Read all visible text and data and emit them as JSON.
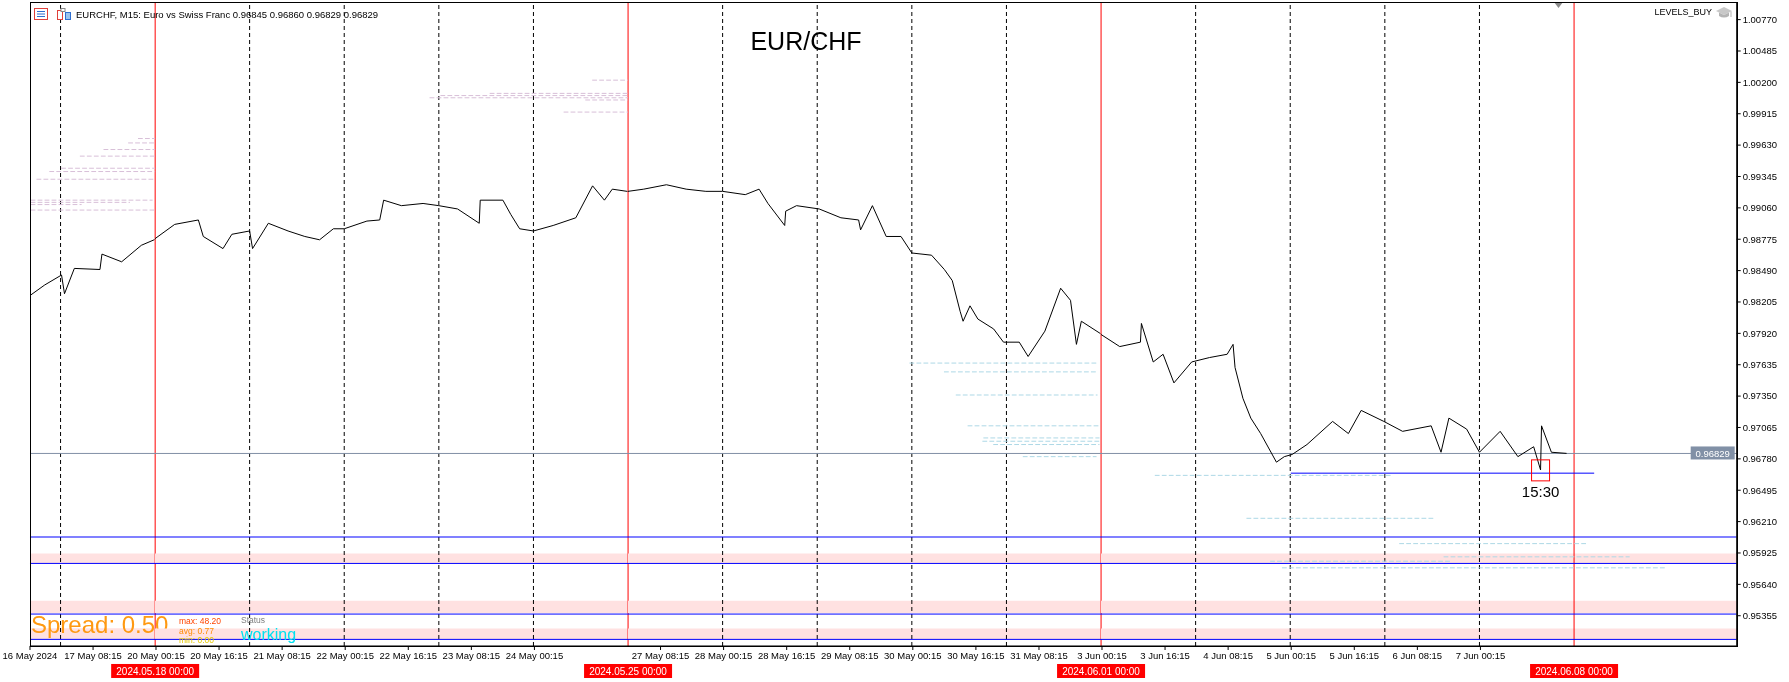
{
  "chart_data": [
    {
      "type": "line",
      "subtitle": "EURCHF, M15: Euro vs Swiss Franc 0.96845 0.96860 0.96829 0.96829",
      "line_style": "solid",
      "marker": "none",
      "tick_labels": "x",
      "xlim": [
        "2024-05-16T16:15",
        "2024-05-18T00:00"
      ],
      "xticks": [
        {
          "value": "2024-05-16T16:15",
          "label": "16 May 2024"
        },
        {
          "value": "2024-05-17T08:15",
          "label": "17 May 08:15"
        }
      ],
      "ylim": [
        0.9508,
        1.0093
      ],
      "series": [
        {
          "color": "#000000",
          "x": [
            "2024-05-16T16:30",
            "2024-05-16T20:00",
            "2024-05-17T00:15",
            "2024-05-17T01:00",
            "2024-05-17T03:30",
            "2024-05-17T10:00",
            "2024-05-17T10:30",
            "2024-05-17T15:30",
            "2024-05-17T20:30",
            "2024-05-17T23:45"
          ],
          "values": [
            0.9827,
            0.9836,
            0.9845,
            0.9828,
            0.9851,
            0.985,
            0.9864,
            0.9857,
            0.9872,
            0.9877
          ]
        },
        {
          "color": "#d8bfd8",
          "line_style": "dashed",
          "x": [
            "2024-05-17T19:45",
            "2024-05-18T00:00"
          ],
          "values": [
            0.9969,
            0.9969
          ]
        },
        {
          "color": "#d8bfd8",
          "line_style": "dashed",
          "x": [
            "2024-05-17T17:15",
            "2024-05-18T00:00"
          ],
          "values": [
            0.9965,
            0.9965
          ]
        },
        {
          "color": "#d8bfd8",
          "line_style": "dashed",
          "x": [
            "2024-05-17T11:00",
            "2024-05-18T00:00"
          ],
          "values": [
            0.9959,
            0.9959
          ]
        },
        {
          "color": "#d8bfd8",
          "line_style": "dashed",
          "x": [
            "2024-05-17T05:00",
            "2024-05-18T00:00"
          ],
          "values": [
            0.9953,
            0.9953
          ]
        },
        {
          "color": "#d8bfd8",
          "line_style": "dashed",
          "x": [
            "2024-05-17T00:15",
            "2024-05-18T00:00"
          ],
          "values": [
            0.9942,
            0.9942
          ]
        },
        {
          "color": "#d8bfd8",
          "line_style": "dashed",
          "x": [
            "2024-05-16T21:15",
            "2024-05-18T00:00"
          ],
          "values": [
            0.9939,
            0.9939
          ]
        },
        {
          "color": "#d8bfd8",
          "line_style": "dashed",
          "x": [
            "2024-05-16T18:00",
            "2024-05-18T00:00"
          ],
          "values": [
            0.9932,
            0.9932
          ]
        },
        {
          "color": "#d8bfd8",
          "line_style": "dashed",
          "x": [
            "2024-05-16T16:30",
            "2024-05-17T23:15"
          ],
          "values": [
            0.9913,
            0.9913
          ]
        },
        {
          "color": "#d8bfd8",
          "line_style": "dashed",
          "x": [
            "2024-05-16T16:30",
            "2024-05-17T17:30"
          ],
          "values": [
            0.9911,
            0.9911
          ]
        },
        {
          "color": "#d8bfd8",
          "line_style": "dashed",
          "x": [
            "2024-05-16T16:30",
            "2024-05-17T05:15"
          ],
          "values": [
            0.9909,
            0.9909
          ]
        },
        {
          "color": "#d8bfd8",
          "line_style": "dashed",
          "x": [
            "2024-05-16T16:30",
            "2024-05-18T00:00"
          ],
          "values": [
            0.9904,
            0.9904
          ]
        }
      ],
      "ref_lines": [
        {
          "axis": "x",
          "value": "2024-05-17T00:00",
          "color": "#000000",
          "line_style": "dashed"
        },
        {
          "axis": "x",
          "value": "2024-05-18T00:00",
          "label": "2024.05.18 00:00",
          "color": "#ff0000"
        },
        {
          "axis": "y",
          "value": 0.9607,
          "color": "#0000ff"
        },
        {
          "axis": "y",
          "value": 0.9583,
          "color": "#0000ff"
        },
        {
          "axis": "y",
          "value": 0.9537,
          "color": "#0000ff"
        },
        {
          "axis": "y",
          "value": 0.9514,
          "color": "#0000ff"
        },
        {
          "axis": "y",
          "value": 0.96829,
          "color": "#8190a6"
        }
      ],
      "bands": [
        {
          "axis": "y",
          "from": 0.9583,
          "to": 0.9592,
          "color": "#ffe1e1"
        },
        {
          "axis": "y",
          "from": 0.9538,
          "to": 0.9549,
          "color": "#ffe1e1"
        },
        {
          "axis": "y",
          "from": 0.9514,
          "to": 0.9524,
          "color": "#ffe1e1"
        }
      ],
      "annotations": [
        "Spread: 0.50"
      ]
    },
    {
      "type": "line",
      "line_style": "solid",
      "marker": "none",
      "tick_labels": "x",
      "xlim": [
        "2024-05-20T00:00",
        "2024-05-25T00:00"
      ],
      "xticks": [
        {
          "value": "2024-05-20T00:15",
          "label": "20 May 00:15"
        },
        {
          "value": "2024-05-20T16:15",
          "label": "20 May 16:15"
        },
        {
          "value": "2024-05-21T08:15",
          "label": "21 May 08:15"
        },
        {
          "value": "2024-05-22T00:15",
          "label": "22 May 00:15"
        },
        {
          "value": "2024-05-22T16:15",
          "label": "22 May 16:15"
        },
        {
          "value": "2024-05-23T08:15",
          "label": "23 May 08:15"
        },
        {
          "value": "2024-05-24T00:15",
          "label": "24 May 00:15"
        }
      ],
      "ylim": [
        0.9508,
        1.0093
      ],
      "series": [
        {
          "color": "#000000",
          "x": [
            "2024-05-20T00:00",
            "2024-05-20T05:00",
            "2024-05-20T11:00",
            "2024-05-20T12:15",
            "2024-05-20T17:15",
            "2024-05-20T19:30",
            "2024-05-21T00:00",
            "2024-05-21T00:45",
            "2024-05-21T04:45",
            "2024-05-21T09:45",
            "2024-05-21T14:00",
            "2024-05-21T17:45",
            "2024-05-21T21:15",
            "2024-05-22T00:00",
            "2024-05-22T05:45",
            "2024-05-22T09:00",
            "2024-05-22T10:00",
            "2024-05-22T14:30",
            "2024-05-22T20:00",
            "2024-05-23T00:00",
            "2024-05-23T04:45",
            "2024-05-23T10:15",
            "2024-05-23T10:30",
            "2024-05-23T16:15",
            "2024-05-23T18:15",
            "2024-05-23T20:30",
            "2024-05-24T00:00",
            "2024-05-24T05:00",
            "2024-05-24T10:45",
            "2024-05-24T15:00",
            "2024-05-24T18:00",
            "2024-05-24T20:00",
            "2024-05-24T23:45"
          ],
          "values": [
            0.9878,
            0.9891,
            0.9895,
            0.988,
            0.9869,
            0.9882,
            0.9885,
            0.9869,
            0.9892,
            0.9885,
            0.988,
            0.9877,
            0.9887,
            0.9887,
            0.9894,
            0.9895,
            0.9913,
            0.9908,
            0.991,
            0.9908,
            0.9905,
            0.9892,
            0.9913,
            0.9913,
            0.99,
            0.9887,
            0.9885,
            0.989,
            0.9897,
            0.9926,
            0.9913,
            0.9923,
            0.9921
          ]
        },
        {
          "color": "#d8bfd8",
          "line_style": "dashed",
          "x": [
            "2024-05-24T15:00",
            "2024-05-25T00:00"
          ],
          "values": [
            1.0022,
            1.0022
          ]
        },
        {
          "color": "#d8bfd8",
          "line_style": "dashed",
          "x": [
            "2024-05-23T13:00",
            "2024-05-25T00:00"
          ],
          "values": [
            1.001,
            1.001
          ]
        },
        {
          "color": "#d8bfd8",
          "line_style": "dashed",
          "x": [
            "2024-05-23T00:30",
            "2024-05-25T00:00"
          ],
          "values": [
            1.0008,
            1.0008
          ]
        },
        {
          "color": "#d8bfd8",
          "line_style": "dashed",
          "x": [
            "2024-05-22T21:45",
            "2024-05-25T00:00"
          ],
          "values": [
            1.0006,
            1.0006
          ]
        },
        {
          "color": "#d8bfd8",
          "line_style": "dashed",
          "x": [
            "2024-05-24T13:15",
            "2024-05-25T00:00"
          ],
          "values": [
            1.0004,
            1.0004
          ]
        },
        {
          "color": "#d8bfd8",
          "line_style": "dashed",
          "x": [
            "2024-05-24T07:45",
            "2024-05-25T00:00"
          ],
          "values": [
            0.9993,
            0.9993
          ]
        }
      ],
      "ref_lines": [
        {
          "axis": "x",
          "value": "2024-05-21T00:00",
          "color": "#000000",
          "line_style": "dashed"
        },
        {
          "axis": "x",
          "value": "2024-05-22T00:00",
          "color": "#000000",
          "line_style": "dashed"
        },
        {
          "axis": "x",
          "value": "2024-05-23T00:00",
          "color": "#000000",
          "line_style": "dashed"
        },
        {
          "axis": "x",
          "value": "2024-05-24T00:00",
          "color": "#000000",
          "line_style": "dashed"
        },
        {
          "axis": "x",
          "value": "2024-05-25T00:00",
          "label": "2024.05.25 00:00",
          "color": "#ff0000"
        },
        {
          "axis": "y",
          "value": 0.9607,
          "color": "#0000ff"
        },
        {
          "axis": "y",
          "value": 0.9583,
          "color": "#0000ff"
        },
        {
          "axis": "y",
          "value": 0.9537,
          "color": "#0000ff"
        },
        {
          "axis": "y",
          "value": 0.9514,
          "color": "#0000ff"
        },
        {
          "axis": "y",
          "value": 0.96829,
          "color": "#8190a6"
        }
      ],
      "bands": [
        {
          "axis": "y",
          "from": 0.9583,
          "to": 0.9592,
          "color": "#ffe1e1"
        },
        {
          "axis": "y",
          "from": 0.9538,
          "to": 0.9549,
          "color": "#ffe1e1"
        },
        {
          "axis": "y",
          "from": 0.9514,
          "to": 0.9524,
          "color": "#ffe1e1"
        }
      ],
      "annotations": [
        "max: 48.20",
        "avg: 0.77",
        "min: 0.00",
        "Status",
        "working"
      ]
    },
    {
      "type": "line",
      "title": "EUR/CHF",
      "line_style": "solid",
      "marker": "none",
      "tick_labels": "x",
      "xlim": [
        "2024-05-27T00:00",
        "2024-06-01T00:00"
      ],
      "xticks": [
        {
          "value": "2024-05-27T08:15",
          "label": "27 May 08:15"
        },
        {
          "value": "2024-05-28T00:15",
          "label": "28 May 00:15"
        },
        {
          "value": "2024-05-28T16:15",
          "label": "28 May 16:15"
        },
        {
          "value": "2024-05-29T08:15",
          "label": "29 May 08:15"
        },
        {
          "value": "2024-05-30T00:15",
          "label": "30 May 00:15"
        },
        {
          "value": "2024-05-30T16:15",
          "label": "30 May 16:15"
        },
        {
          "value": "2024-05-31T08:15",
          "label": "31 May 08:15"
        }
      ],
      "ylim": [
        0.9508,
        1.0093
      ],
      "series": [
        {
          "color": "#000000",
          "x": [
            "2024-05-27T00:00",
            "2024-05-27T04:00",
            "2024-05-27T09:45",
            "2024-05-27T14:45",
            "2024-05-27T19:45",
            "2024-05-28T00:00",
            "2024-05-28T05:45",
            "2024-05-28T09:15",
            "2024-05-28T11:30",
            "2024-05-28T15:45",
            "2024-05-28T16:00",
            "2024-05-28T18:45",
            "2024-05-29T00:30",
            "2024-05-29T06:00",
            "2024-05-29T10:30",
            "2024-05-29T11:00",
            "2024-05-29T14:00",
            "2024-05-29T17:30",
            "2024-05-29T21:15",
            "2024-05-30T00:00",
            "2024-05-30T05:00",
            "2024-05-30T08:15",
            "2024-05-30T10:15",
            "2024-05-30T12:15",
            "2024-05-30T13:00",
            "2024-05-30T14:45",
            "2024-05-30T16:45",
            "2024-05-30T20:45",
            "2024-05-30T23:15",
            "2024-05-31T03:15",
            "2024-05-31T05:30",
            "2024-05-31T09:45",
            "2024-05-31T13:45",
            "2024-05-31T16:15",
            "2024-05-31T17:45",
            "2024-05-31T19:00",
            "2024-05-31T23:45"
          ],
          "values": [
            0.9921,
            0.9923,
            0.9927,
            0.9923,
            0.9921,
            0.9921,
            0.9918,
            0.9923,
            0.991,
            0.989,
            0.9903,
            0.9908,
            0.9905,
            0.9897,
            0.9895,
            0.9886,
            0.9908,
            0.988,
            0.988,
            0.9865,
            0.9863,
            0.985,
            0.984,
            0.9812,
            0.9803,
            0.9817,
            0.9805,
            0.9796,
            0.9784,
            0.9784,
            0.9771,
            0.9794,
            0.9833,
            0.9822,
            0.9782,
            0.9803,
            0.9792
          ]
        },
        {
          "color": "#add8e6",
          "line_style": "dashed",
          "x": [
            "2024-05-29T23:30",
            "2024-05-31T23:00"
          ],
          "values": [
            0.9765,
            0.9765
          ]
        },
        {
          "color": "#add8e6",
          "line_style": "dashed",
          "x": [
            "2024-05-30T08:15",
            "2024-05-31T23:00"
          ],
          "values": [
            0.9757,
            0.9757
          ]
        },
        {
          "color": "#add8e6",
          "line_style": "dashed",
          "x": [
            "2024-05-30T11:15",
            "2024-05-31T23:00"
          ],
          "values": [
            0.9736,
            0.9736
          ]
        },
        {
          "color": "#add8e6",
          "line_style": "dashed",
          "x": [
            "2024-05-30T14:15",
            "2024-05-31T23:30"
          ],
          "values": [
            0.9708,
            0.9708
          ]
        },
        {
          "color": "#add8e6",
          "line_style": "dashed",
          "x": [
            "2024-05-30T18:15",
            "2024-05-31T23:30"
          ],
          "values": [
            0.9697,
            0.9697
          ]
        },
        {
          "color": "#add8e6",
          "line_style": "dashed",
          "x": [
            "2024-05-30T18:00",
            "2024-05-31T23:30"
          ],
          "values": [
            0.9694,
            0.9694
          ]
        },
        {
          "color": "#add8e6",
          "line_style": "dashed",
          "x": [
            "2024-05-30T20:45",
            "2024-05-31T23:30"
          ],
          "values": [
            0.9691,
            0.9691
          ]
        },
        {
          "color": "#add8e6",
          "line_style": "dashed",
          "x": [
            "2024-05-31T04:15",
            "2024-05-31T22:45"
          ],
          "values": [
            0.968,
            0.968
          ]
        }
      ],
      "ref_lines": [
        {
          "axis": "x",
          "value": "2024-05-28T00:00",
          "color": "#000000",
          "line_style": "dashed"
        },
        {
          "axis": "x",
          "value": "2024-05-29T00:00",
          "color": "#000000",
          "line_style": "dashed"
        },
        {
          "axis": "x",
          "value": "2024-05-30T00:00",
          "color": "#000000",
          "line_style": "dashed"
        },
        {
          "axis": "x",
          "value": "2024-05-31T00:00",
          "color": "#000000",
          "line_style": "dashed"
        },
        {
          "axis": "x",
          "value": "2024-06-01T00:00",
          "label": "2024.06.01 00:00",
          "color": "#ff0000"
        },
        {
          "axis": "y",
          "value": 0.9607,
          "color": "#0000ff"
        },
        {
          "axis": "y",
          "value": 0.9583,
          "color": "#0000ff"
        },
        {
          "axis": "y",
          "value": 0.9537,
          "color": "#0000ff"
        },
        {
          "axis": "y",
          "value": 0.9514,
          "color": "#0000ff"
        },
        {
          "axis": "y",
          "value": 0.96829,
          "color": "#8190a6"
        }
      ],
      "bands": [
        {
          "axis": "y",
          "from": 0.9583,
          "to": 0.9592,
          "color": "#ffe1e1"
        },
        {
          "axis": "y",
          "from": 0.9538,
          "to": 0.9549,
          "color": "#ffe1e1"
        },
        {
          "axis": "y",
          "from": 0.9514,
          "to": 0.9524,
          "color": "#ffe1e1"
        }
      ]
    },
    {
      "type": "line",
      "line_style": "solid",
      "marker": "none",
      "xlim": [
        "2024-06-03T00:00",
        "2024-06-09T17:15"
      ],
      "xticks": [
        {
          "value": "2024-06-03T00:15",
          "label": "3 Jun 00:15"
        },
        {
          "value": "2024-06-03T16:15",
          "label": "3 Jun 16:15"
        },
        {
          "value": "2024-06-04T08:15",
          "label": "4 Jun 08:15"
        },
        {
          "value": "2024-06-05T00:15",
          "label": "5 Jun 00:15"
        },
        {
          "value": "2024-06-05T16:15",
          "label": "5 Jun 16:15"
        },
        {
          "value": "2024-06-06T08:15",
          "label": "6 Jun 08:15"
        },
        {
          "value": "2024-06-07T00:15",
          "label": "7 Jun 00:15"
        }
      ],
      "ylim": [
        0.9508,
        1.0093
      ],
      "yticks": [
        {
          "value": 0.95355,
          "label": "0.95355"
        },
        {
          "value": 0.9564,
          "label": "0.95640"
        },
        {
          "value": 0.95925,
          "label": "0.95925"
        },
        {
          "value": 0.9621,
          "label": "0.96210"
        },
        {
          "value": 0.96495,
          "label": "0.96495"
        },
        {
          "value": 0.9678,
          "label": "0.96780"
        },
        {
          "value": 0.97065,
          "label": "0.97065"
        },
        {
          "value": 0.9735,
          "label": "0.97350"
        },
        {
          "value": 0.97635,
          "label": "0.97635"
        },
        {
          "value": 0.9792,
          "label": "0.97920"
        },
        {
          "value": 0.98205,
          "label": "0.98205"
        },
        {
          "value": 0.9849,
          "label": "0.98490"
        },
        {
          "value": 0.98775,
          "label": "0.98775"
        },
        {
          "value": 0.9906,
          "label": "0.99060"
        },
        {
          "value": 0.99345,
          "label": "0.99345"
        },
        {
          "value": 0.9963,
          "label": "0.99630"
        },
        {
          "value": 0.99915,
          "label": "0.99915"
        },
        {
          "value": 1.002,
          "label": "1.00200"
        },
        {
          "value": 1.00485,
          "label": "1.00485"
        },
        {
          "value": 1.0077,
          "label": "1.00770"
        }
      ],
      "series": [
        {
          "color": "#000000",
          "x": [
            "2024-06-03T00:00",
            "2024-06-03T04:45",
            "2024-06-03T10:00",
            "2024-06-03T10:15",
            "2024-06-03T13:15",
            "2024-06-03T15:45",
            "2024-06-03T18:30",
            "2024-06-03T23:00",
            "2024-06-04T03:30",
            "2024-06-04T08:00",
            "2024-06-04T09:30",
            "2024-06-04T10:00",
            "2024-06-04T12:00",
            "2024-06-04T14:00",
            "2024-06-04T16:30",
            "2024-06-04T20:30",
            "2024-06-04T22:30",
            "2024-06-05T00:30",
            "2024-06-05T04:15",
            "2024-06-05T10:45",
            "2024-06-05T14:45",
            "2024-06-05T18:00",
            "2024-06-05T23:45",
            "2024-06-06T04:30",
            "2024-06-06T11:45",
            "2024-06-06T14:15",
            "2024-06-06T16:15",
            "2024-06-06T20:45",
            "2024-06-07T00:00",
            "2024-06-07T05:15",
            "2024-06-07T09:45",
            "2024-06-07T13:45",
            "2024-06-07T15:30",
            "2024-06-07T15:45",
            "2024-06-07T18:15",
            "2024-06-07T22:00"
          ],
          "values": [
            0.9791,
            0.978,
            0.9784,
            0.9801,
            0.9766,
            0.9773,
            0.9747,
            0.9766,
            0.977,
            0.9773,
            0.9782,
            0.9761,
            0.9733,
            0.9715,
            0.9701,
            0.9675,
            0.968,
            0.9682,
            0.9691,
            0.9712,
            0.9701,
            0.9722,
            0.9712,
            0.9703,
            0.9708,
            0.9684,
            0.9715,
            0.9705,
            0.9684,
            0.9703,
            0.968,
            0.9689,
            0.9668,
            0.9708,
            0.9684,
            0.9683
          ]
        },
        {
          "color": "#0000ff",
          "x": [
            "2024-06-05T00:15",
            "2024-06-08T05:00"
          ],
          "values": [
            0.9665,
            0.9665
          ]
        },
        {
          "color": "#add8e6",
          "line_style": "dashed",
          "x": [
            "2024-06-03T13:45",
            "2024-06-06T02:00"
          ],
          "values": [
            0.9663,
            0.9663
          ]
        },
        {
          "color": "#add8e6",
          "line_style": "dashed",
          "x": [
            "2024-06-04T13:00",
            "2024-06-06T12:15"
          ],
          "values": [
            0.9624,
            0.9624
          ]
        },
        {
          "color": "#add8e6",
          "line_style": "dashed",
          "x": [
            "2024-06-06T03:45",
            "2024-06-08T03:00"
          ],
          "values": [
            0.9601,
            0.9601
          ]
        },
        {
          "color": "#add8e6",
          "line_style": "dashed",
          "x": [
            "2024-06-06T15:00",
            "2024-06-08T14:00"
          ],
          "values": [
            0.9589,
            0.9589
          ]
        },
        {
          "color": "#add8e6",
          "line_style": "dashed",
          "x": [
            "2024-06-04T19:00",
            "2024-06-06T17:00"
          ],
          "values": [
            0.9585,
            0.9585
          ]
        },
        {
          "color": "#add8e6",
          "line_style": "dashed",
          "x": [
            "2024-06-04T22:00",
            "2024-06-08T23:00"
          ],
          "values": [
            0.9579,
            0.9579
          ]
        }
      ],
      "ref_lines": [
        {
          "axis": "x",
          "value": "2024-06-04T00:00",
          "color": "#000000",
          "line_style": "dashed"
        },
        {
          "axis": "x",
          "value": "2024-06-05T00:00",
          "color": "#000000",
          "line_style": "dashed"
        },
        {
          "axis": "x",
          "value": "2024-06-06T00:00",
          "color": "#000000",
          "line_style": "dashed"
        },
        {
          "axis": "x",
          "value": "2024-06-07T00:00",
          "color": "#000000",
          "line_style": "dashed"
        },
        {
          "axis": "x",
          "value": "2024-06-08T00:00",
          "label": "2024.06.08 00:00",
          "color": "#ff0000"
        },
        {
          "axis": "y",
          "value": 0.9607,
          "color": "#0000ff"
        },
        {
          "axis": "y",
          "value": 0.9583,
          "color": "#0000ff"
        },
        {
          "axis": "y",
          "value": 0.9537,
          "color": "#0000ff"
        },
        {
          "axis": "y",
          "value": 0.9514,
          "color": "#0000ff"
        },
        {
          "axis": "y",
          "value": 0.96829,
          "label": "0.96829",
          "color": "#8190a6"
        }
      ],
      "bands": [
        {
          "axis": "y",
          "from": 0.9583,
          "to": 0.9592,
          "color": "#ffe1e1"
        },
        {
          "axis": "y",
          "from": 0.9538,
          "to": 0.9549,
          "color": "#ffe1e1"
        },
        {
          "axis": "y",
          "from": 0.9514,
          "to": 0.9524,
          "color": "#ffe1e1"
        }
      ],
      "annotations": [
        {
          "text": "15:30",
          "x": "2024-06-07T15:30",
          "y": 0.9668
        },
        "LEVELS_BUY"
      ]
    }
  ]
}
